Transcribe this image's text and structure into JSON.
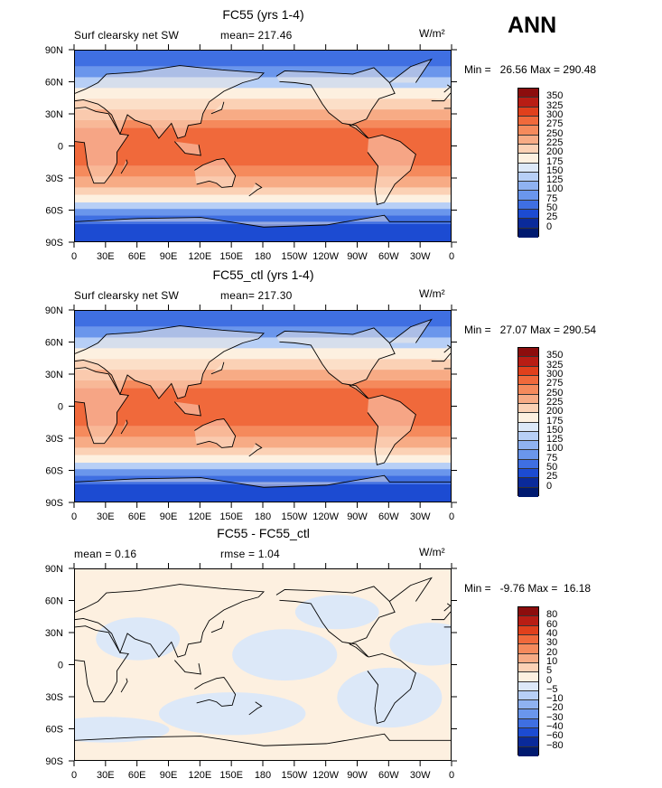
{
  "season": "ANN",
  "units": "W/m²",
  "lat_labels": [
    "90N",
    "60N",
    "30N",
    "0",
    "30S",
    "60S",
    "90S"
  ],
  "lon_labels": [
    "0",
    "30E",
    "60E",
    "90E",
    "120E",
    "150E",
    "180",
    "150W",
    "120W",
    "90W",
    "60W",
    "30W",
    "0"
  ],
  "panels": [
    {
      "title": "FC55 (yrs 1-4)",
      "subtitle": "Surf clearsky net SW",
      "stat_label": "mean= 217.46",
      "minmax": "Min =   26.56 Max = 290.48",
      "colors": {
        "top": "#2563d6",
        "mid": "#f06a3a",
        "ice": "#1f4fcf"
      },
      "legend": [
        "350",
        "325",
        "300",
        "275",
        "250",
        "225",
        "200",
        "175",
        "150",
        "125",
        "100",
        "75",
        "50",
        "25",
        "0"
      ],
      "legend_colors": [
        "#8c0d0d",
        "#b81d14",
        "#e0401c",
        "#f0693b",
        "#f58a5c",
        "#f7ab85",
        "#fbd1b5",
        "#fdf0e0",
        "#dce8f8",
        "#b7cff6",
        "#8fb2f1",
        "#6a96ec",
        "#3f6fe2",
        "#1c4bd2",
        "#0a2a9a",
        "#001a70"
      ]
    },
    {
      "title": "FC55_ctl (yrs 1-4)",
      "subtitle": "Surf clearsky net SW",
      "stat_label": "mean= 217.30",
      "minmax": "Min =   27.07 Max = 290.54",
      "colors": {
        "top": "#2563d6",
        "mid": "#f06a3a",
        "ice": "#1f4fcf"
      },
      "legend": [
        "350",
        "325",
        "300",
        "275",
        "250",
        "225",
        "200",
        "175",
        "150",
        "125",
        "100",
        "75",
        "50",
        "25",
        "0"
      ],
      "legend_colors": [
        "#8c0d0d",
        "#b81d14",
        "#e0401c",
        "#f0693b",
        "#f58a5c",
        "#f7ab85",
        "#fbd1b5",
        "#fdf0e0",
        "#dce8f8",
        "#b7cff6",
        "#8fb2f1",
        "#6a96ec",
        "#3f6fe2",
        "#1c4bd2",
        "#0a2a9a",
        "#001a70"
      ]
    },
    {
      "title": "FC55 - FC55_ctl",
      "stat_left": "mean =    0.16",
      "stat_right": "rmse =    1.04",
      "minmax": "Min =   -9.76 Max =  16.18",
      "legend": [
        "80",
        "60",
        "40",
        "30",
        "20",
        "10",
        "5",
        "0",
        "−5",
        "−10",
        "−20",
        "−30",
        "−40",
        "−60",
        "−80"
      ],
      "legend_colors": [
        "#8c0d0d",
        "#b81d14",
        "#e0401c",
        "#f0693b",
        "#f58a5c",
        "#f7ab85",
        "#fbd1b5",
        "#fdf0e0",
        "#dce8f8",
        "#b7cff6",
        "#8fb2f1",
        "#6a96ec",
        "#3f6fe2",
        "#1c4bd2",
        "#0a2a9a",
        "#001a70"
      ]
    }
  ],
  "chart_data": [
    {
      "type": "heatmap",
      "title": "FC55 (yrs 1-4)",
      "variable": "Surf clearsky net SW",
      "mean": 217.46,
      "min": 26.56,
      "max": 290.48,
      "units": "W/m2",
      "xlim": [
        0,
        360
      ],
      "ylim": [
        -90,
        90
      ],
      "levels": [
        0,
        25,
        50,
        75,
        100,
        125,
        150,
        175,
        200,
        225,
        250,
        275,
        300,
        325,
        350
      ]
    },
    {
      "type": "heatmap",
      "title": "FC55_ctl (yrs 1-4)",
      "variable": "Surf clearsky net SW",
      "mean": 217.3,
      "min": 27.07,
      "max": 290.54,
      "units": "W/m2",
      "xlim": [
        0,
        360
      ],
      "ylim": [
        -90,
        90
      ],
      "levels": [
        0,
        25,
        50,
        75,
        100,
        125,
        150,
        175,
        200,
        225,
        250,
        275,
        300,
        325,
        350
      ]
    },
    {
      "type": "heatmap",
      "title": "FC55 - FC55_ctl",
      "mean": 0.16,
      "rmse": 1.04,
      "min": -9.76,
      "max": 16.18,
      "units": "W/m2",
      "xlim": [
        0,
        360
      ],
      "ylim": [
        -90,
        90
      ],
      "levels": [
        -80,
        -60,
        -40,
        -30,
        -20,
        -10,
        -5,
        0,
        5,
        10,
        20,
        30,
        40,
        60,
        80
      ]
    }
  ]
}
